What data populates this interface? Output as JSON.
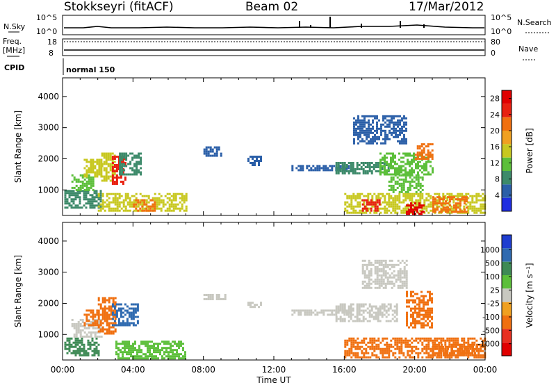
{
  "header": {
    "station": "Stokkseyri (fitACF)",
    "beam": "Beam 02",
    "date": "17/Mar/2012"
  },
  "summary": {
    "nsky_label": "N.Sky",
    "nsky_ticks": [
      "10^5",
      "10^0"
    ],
    "nsearch_label": "N.Search",
    "nsearch_ticks": [
      "10^5",
      "10^0"
    ],
    "freq_label": "Freq.",
    "freq_unit": "[MHz]",
    "freq_ticks": [
      "18",
      "8"
    ],
    "nave_label": "Nave",
    "nave_ticks": [
      "80",
      "0"
    ],
    "cpid_label": "CPID",
    "cpid_value": "normal 150"
  },
  "colors": {
    "power_scale": [
      "#1f2ee0",
      "#2b5fa8",
      "#3d8a6a",
      "#5cbf3a",
      "#c8c820",
      "#f0a020",
      "#f07010",
      "#e82010",
      "#e00000"
    ],
    "velocity_scale": [
      "#1f3ed0",
      "#2f6ab0",
      "#3e8a55",
      "#5cbf3a",
      "#c8c8c0",
      "#f0a020",
      "#f07010",
      "#e83020",
      "#e00000"
    ]
  },
  "chart_data": [
    {
      "type": "heatmap",
      "title": "Power",
      "xlabel": "Time UT",
      "ylabel": "Slant Range [km]",
      "x_ticks": [
        "00:00",
        "04:00",
        "08:00",
        "12:00",
        "16:00",
        "20:00",
        "00:00"
      ],
      "xlim": [
        0,
        24
      ],
      "y_ticks": [
        1000,
        2000,
        3000,
        4000
      ],
      "ylim": [
        180,
        4600
      ],
      "colorbar_label": "Power [dB]",
      "colorbar_ticks": [
        4,
        8,
        12,
        16,
        20,
        24,
        28
      ],
      "colorbar_range": [
        0,
        30
      ],
      "regions": [
        {
          "t0": 0.1,
          "t1": 2.2,
          "r0": 400,
          "r1": 1000,
          "value": 8
        },
        {
          "t0": 0.5,
          "t1": 1.8,
          "r0": 1000,
          "r1": 1500,
          "value": 12
        },
        {
          "t0": 1.2,
          "t1": 2.2,
          "r0": 1400,
          "r1": 2000,
          "value": 14
        },
        {
          "t0": 2.2,
          "t1": 3.0,
          "r0": 1300,
          "r1": 2200,
          "value": 16
        },
        {
          "t0": 2.8,
          "t1": 3.6,
          "r0": 1200,
          "r1": 2100,
          "value": 26
        },
        {
          "t0": 3.2,
          "t1": 4.5,
          "r0": 1500,
          "r1": 2200,
          "value": 8
        },
        {
          "t0": 2.0,
          "t1": 7.0,
          "r0": 300,
          "r1": 900,
          "value": 14
        },
        {
          "t0": 4.0,
          "t1": 5.2,
          "r0": 300,
          "r1": 700,
          "value": 22
        },
        {
          "t0": 8.0,
          "t1": 9.0,
          "r0": 2100,
          "r1": 2400,
          "value": 6
        },
        {
          "t0": 10.5,
          "t1": 11.3,
          "r0": 1800,
          "r1": 2100,
          "value": 6
        },
        {
          "t0": 13.0,
          "t1": 16.5,
          "r0": 1600,
          "r1": 1800,
          "value": 6
        },
        {
          "t0": 15.5,
          "t1": 18.5,
          "r0": 1500,
          "r1": 1900,
          "value": 9
        },
        {
          "t0": 16.0,
          "t1": 24.0,
          "r0": 250,
          "r1": 900,
          "value": 16
        },
        {
          "t0": 17.0,
          "t1": 18.0,
          "r0": 300,
          "r1": 700,
          "value": 24
        },
        {
          "t0": 19.5,
          "t1": 20.5,
          "r0": 250,
          "r1": 600,
          "value": 28
        },
        {
          "t0": 21.0,
          "t1": 23.0,
          "r0": 300,
          "r1": 800,
          "value": 20
        },
        {
          "t0": 18.0,
          "t1": 21.0,
          "r0": 1500,
          "r1": 2200,
          "value": 10
        },
        {
          "t0": 20.0,
          "t1": 21.0,
          "r0": 2000,
          "r1": 2500,
          "value": 20
        },
        {
          "t0": 16.5,
          "t1": 19.5,
          "r0": 2500,
          "r1": 3400,
          "value": 6
        },
        {
          "t0": 18.5,
          "t1": 20.5,
          "r0": 900,
          "r1": 1500,
          "value": 12
        }
      ]
    },
    {
      "type": "heatmap",
      "title": "Velocity",
      "xlabel": "Time UT",
      "ylabel": "Slant Range [km]",
      "x_ticks": [
        "00:00",
        "04:00",
        "08:00",
        "12:00",
        "16:00",
        "20:00",
        "00:00"
      ],
      "xlim": [
        0,
        24
      ],
      "y_ticks": [
        1000,
        2000,
        3000,
        4000
      ],
      "ylim": [
        180,
        4600
      ],
      "colorbar_label": "Velocity [m s⁻¹]",
      "colorbar_ticks": [
        "1000",
        "500",
        "100",
        "25",
        "-25",
        "-100",
        "-500",
        "-1000"
      ],
      "regions": [
        {
          "t0": 0.1,
          "t1": 2.0,
          "r0": 300,
          "r1": 900,
          "value": 100
        },
        {
          "t0": 0.5,
          "t1": 2.2,
          "r0": 900,
          "r1": 1500,
          "value": 0
        },
        {
          "t0": 1.2,
          "t1": 2.0,
          "r0": 1300,
          "r1": 1800,
          "value": -500
        },
        {
          "t0": 2.0,
          "t1": 3.0,
          "r0": 1000,
          "r1": 2200,
          "value": -200
        },
        {
          "t0": 2.8,
          "t1": 4.3,
          "r0": 1300,
          "r1": 2000,
          "value": 700
        },
        {
          "t0": 3.0,
          "t1": 7.0,
          "r0": 250,
          "r1": 800,
          "value": 80
        },
        {
          "t0": 8.0,
          "t1": 9.2,
          "r0": 2100,
          "r1": 2300,
          "value": 0
        },
        {
          "t0": 10.5,
          "t1": 11.3,
          "r0": 1850,
          "r1": 2050,
          "value": 0
        },
        {
          "t0": 13.0,
          "t1": 16.5,
          "r0": 1600,
          "r1": 1800,
          "value": 0
        },
        {
          "t0": 15.5,
          "t1": 19.0,
          "r0": 1450,
          "r1": 2000,
          "value": 0
        },
        {
          "t0": 16.0,
          "t1": 24.0,
          "r0": 250,
          "r1": 900,
          "value": -200
        },
        {
          "t0": 19.5,
          "t1": 21.0,
          "r0": 1200,
          "r1": 2400,
          "value": -150
        },
        {
          "t0": 17.0,
          "t1": 19.5,
          "r0": 2500,
          "r1": 3400,
          "value": 0
        },
        {
          "t0": 21.0,
          "t1": 23.5,
          "r0": 300,
          "r1": 700,
          "value": -120
        }
      ]
    }
  ]
}
